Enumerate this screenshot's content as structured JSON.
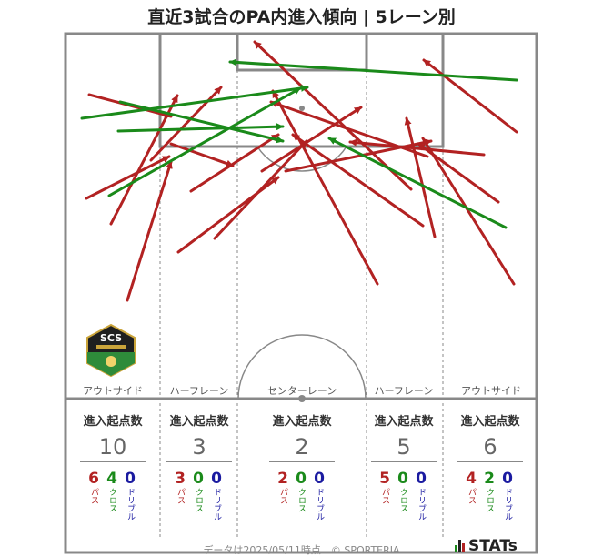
{
  "title": "直近3試合のPA内進入傾向 | 5レーン別",
  "logo": {
    "text": "SCS",
    "icon": "scs-crest-icon"
  },
  "lanes": [
    {
      "label": "アウトサイド",
      "title": "進入起点数",
      "count": "10",
      "pass": "6",
      "cross": "4",
      "dribble": "0"
    },
    {
      "label": "ハーフレーン",
      "title": "進入起点数",
      "count": "3",
      "pass": "3",
      "cross": "0",
      "dribble": "0"
    },
    {
      "label": "センターレーン",
      "title": "進入起点数",
      "count": "2",
      "pass": "2",
      "cross": "0",
      "dribble": "0"
    },
    {
      "label": "ハーフレーン",
      "title": "進入起点数",
      "count": "5",
      "pass": "5",
      "cross": "0",
      "dribble": "0"
    },
    {
      "label": "アウトサイド",
      "title": "進入起点数",
      "count": "6",
      "pass": "4",
      "cross": "2",
      "dribble": "0"
    }
  ],
  "legend": {
    "pass": "パス",
    "cross": "クロス",
    "dribble": "ドリブル"
  },
  "colors": {
    "pass": "#b22222",
    "cross": "#1a8a1a",
    "dribble": "#1a1aa0",
    "pitch_line": "#888888"
  },
  "footer": "データは2025/05/11時点　© SPORTERIA",
  "brand": "STATs"
}
